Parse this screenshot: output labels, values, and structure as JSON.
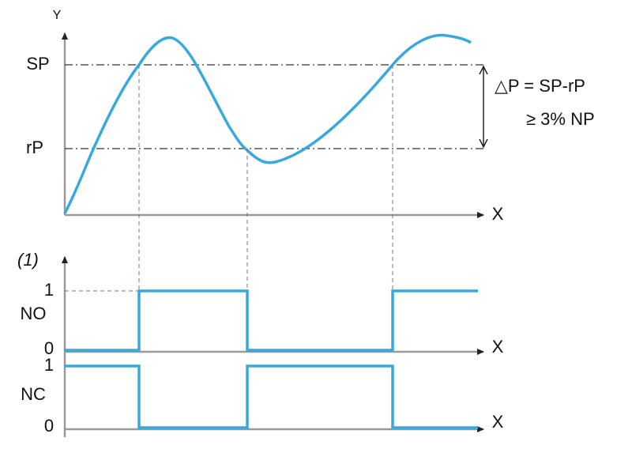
{
  "top_plot": {
    "y_axis_label": "Y",
    "levels": [
      "SP",
      "rP"
    ],
    "x_axis_label": "X",
    "annotation": [
      "△P = SP-rP",
      "≥ 3% NP"
    ]
  },
  "no_plot": {
    "note": "(1)",
    "name": "NO",
    "levels": [
      "1",
      "0"
    ],
    "x_axis_label": "X"
  },
  "nc_plot": {
    "name": "NC",
    "levels": [
      "1",
      "0"
    ],
    "x_axis_label": "X"
  }
}
